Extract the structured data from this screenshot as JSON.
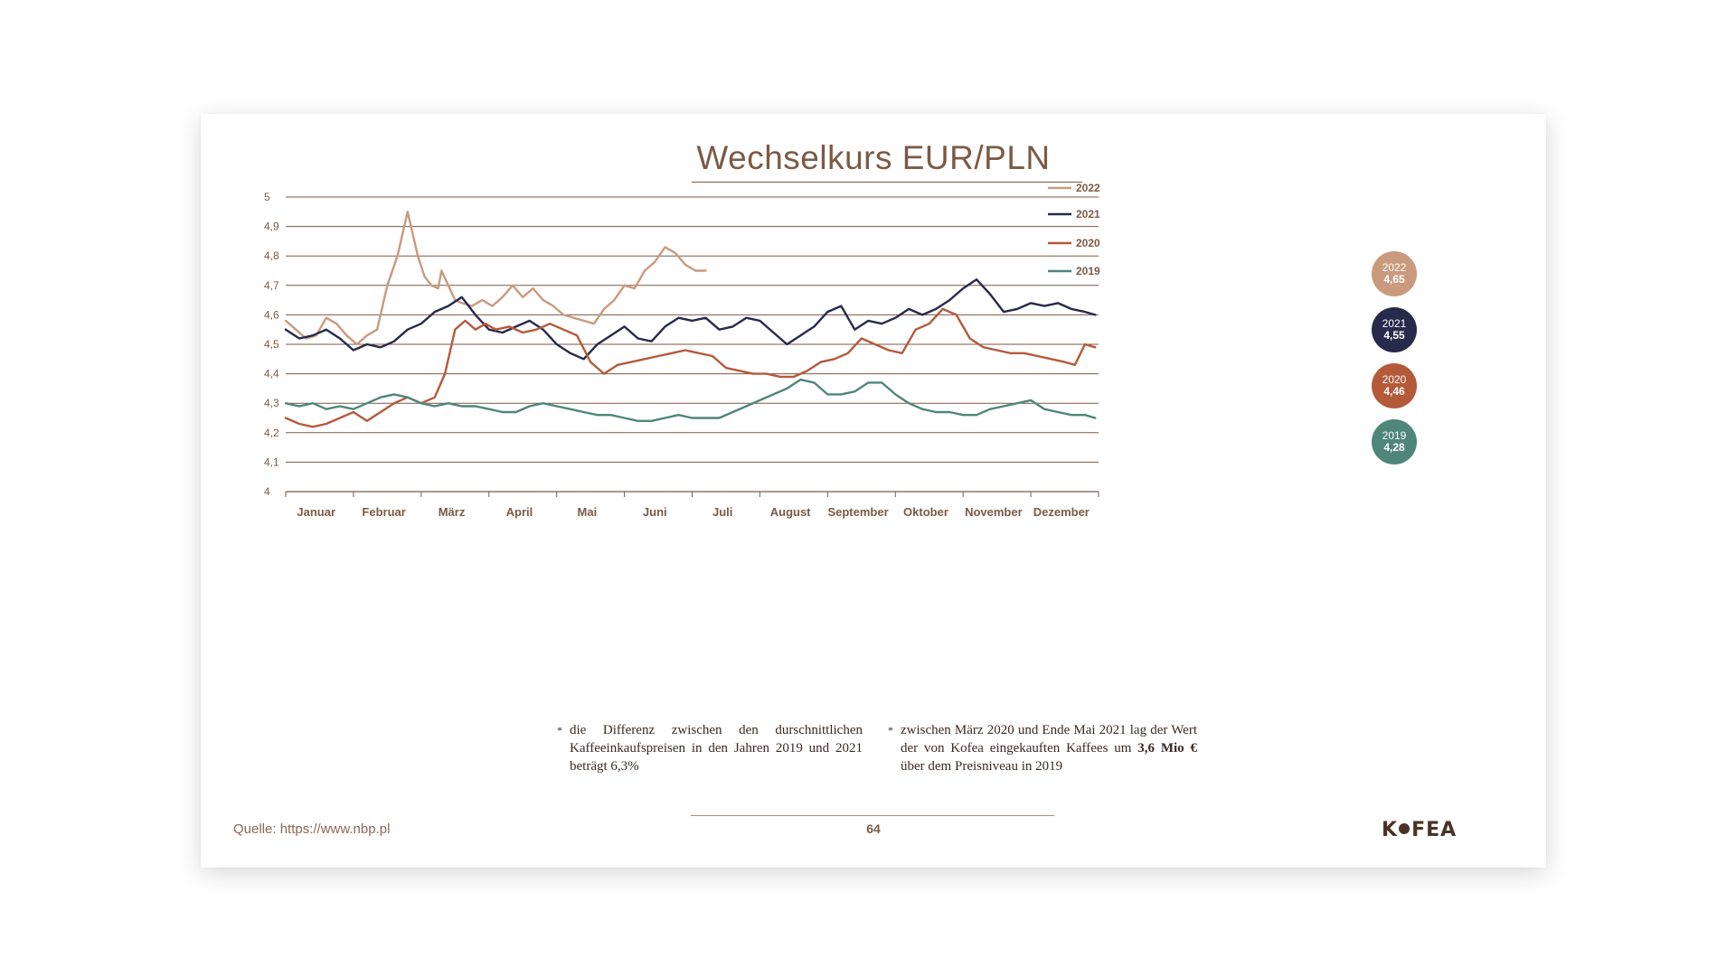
{
  "colors": {
    "c2022": "#c99a7e",
    "c2021": "#272a4b",
    "c2020": "#b5593b",
    "c2019": "#4e867a",
    "axis_text": "#7b5a45",
    "grid": "#7b5a45"
  },
  "title": "Wechselkurs EUR/PLN",
  "chart_data": {
    "type": "line",
    "title": "Wechselkurs EUR/PLN",
    "xlabel": "",
    "ylabel": "",
    "ylim": [
      4,
      5
    ],
    "yticks": [
      "4",
      "4,1",
      "4,2",
      "4,3",
      "4,4",
      "4,5",
      "4,6",
      "4,7",
      "4,8",
      "4,9",
      "5"
    ],
    "categories": [
      "Januar",
      "Februar",
      "März",
      "April",
      "Mai",
      "Juni",
      "Juli",
      "August",
      "September",
      "Oktober",
      "November",
      "Dezember"
    ],
    "x_unit": "month (0-12)",
    "grid": true,
    "legend_position": "top-right",
    "series": [
      {
        "name": "2022",
        "color": "#c99a7e",
        "x": [
          0,
          0.15,
          0.3,
          0.45,
          0.6,
          0.75,
          0.9,
          1.05,
          1.2,
          1.35,
          1.5,
          1.65,
          1.8,
          1.95,
          2.05,
          2.15,
          2.25,
          2.3,
          2.4,
          2.5,
          2.6,
          2.75,
          2.9,
          3.05,
          3.2,
          3.35,
          3.5,
          3.65,
          3.8,
          3.95,
          4.1,
          4.25,
          4.4,
          4.55,
          4.7,
          4.85,
          5.0,
          5.15,
          5.3,
          5.45,
          5.6,
          5.75,
          5.9,
          6.05,
          6.2
        ],
        "y": [
          4.58,
          4.55,
          4.52,
          4.53,
          4.59,
          4.57,
          4.53,
          4.5,
          4.53,
          4.55,
          4.7,
          4.8,
          4.95,
          4.8,
          4.73,
          4.7,
          4.69,
          4.75,
          4.7,
          4.65,
          4.64,
          4.63,
          4.65,
          4.63,
          4.66,
          4.7,
          4.66,
          4.69,
          4.65,
          4.63,
          4.6,
          4.59,
          4.58,
          4.57,
          4.62,
          4.65,
          4.7,
          4.69,
          4.75,
          4.78,
          4.83,
          4.81,
          4.77,
          4.75,
          4.75
        ]
      },
      {
        "name": "2021",
        "color": "#272a4b",
        "x": [
          0,
          0.2,
          0.4,
          0.6,
          0.8,
          1.0,
          1.2,
          1.4,
          1.6,
          1.8,
          2.0,
          2.2,
          2.4,
          2.6,
          2.8,
          3.0,
          3.2,
          3.4,
          3.6,
          3.8,
          4.0,
          4.2,
          4.4,
          4.6,
          4.8,
          5.0,
          5.2,
          5.4,
          5.6,
          5.8,
          6.0,
          6.2,
          6.4,
          6.6,
          6.8,
          7.0,
          7.2,
          7.4,
          7.6,
          7.8,
          8.0,
          8.2,
          8.4,
          8.6,
          8.8,
          9.0,
          9.2,
          9.4,
          9.6,
          9.8,
          10.0,
          10.2,
          10.4,
          10.6,
          10.8,
          11.0,
          11.2,
          11.4,
          11.6,
          11.8,
          11.95
        ],
        "y": [
          4.55,
          4.52,
          4.53,
          4.55,
          4.52,
          4.48,
          4.5,
          4.49,
          4.51,
          4.55,
          4.57,
          4.61,
          4.63,
          4.66,
          4.6,
          4.55,
          4.54,
          4.56,
          4.58,
          4.55,
          4.5,
          4.47,
          4.45,
          4.5,
          4.53,
          4.56,
          4.52,
          4.51,
          4.56,
          4.59,
          4.58,
          4.59,
          4.55,
          4.56,
          4.59,
          4.58,
          4.54,
          4.5,
          4.53,
          4.56,
          4.61,
          4.63,
          4.55,
          4.58,
          4.57,
          4.59,
          4.62,
          4.6,
          4.62,
          4.65,
          4.69,
          4.72,
          4.67,
          4.61,
          4.62,
          4.64,
          4.63,
          4.64,
          4.62,
          4.61,
          4.6
        ]
      },
      {
        "name": "2020",
        "color": "#b5593b",
        "x": [
          0,
          0.2,
          0.4,
          0.6,
          0.8,
          1.0,
          1.2,
          1.4,
          1.6,
          1.8,
          2.0,
          2.2,
          2.35,
          2.5,
          2.65,
          2.8,
          2.95,
          3.1,
          3.3,
          3.5,
          3.7,
          3.9,
          4.1,
          4.3,
          4.5,
          4.7,
          4.9,
          5.1,
          5.3,
          5.5,
          5.7,
          5.9,
          6.1,
          6.3,
          6.5,
          6.7,
          6.9,
          7.1,
          7.3,
          7.5,
          7.7,
          7.9,
          8.1,
          8.3,
          8.5,
          8.7,
          8.9,
          9.1,
          9.3,
          9.5,
          9.7,
          9.9,
          10.1,
          10.3,
          10.5,
          10.7,
          10.9,
          11.1,
          11.3,
          11.5,
          11.65,
          11.8,
          11.95
        ],
        "y": [
          4.25,
          4.23,
          4.22,
          4.23,
          4.25,
          4.27,
          4.24,
          4.27,
          4.3,
          4.32,
          4.3,
          4.32,
          4.4,
          4.55,
          4.58,
          4.55,
          4.57,
          4.55,
          4.56,
          4.54,
          4.55,
          4.57,
          4.55,
          4.53,
          4.44,
          4.4,
          4.43,
          4.44,
          4.45,
          4.46,
          4.47,
          4.48,
          4.47,
          4.46,
          4.42,
          4.41,
          4.4,
          4.4,
          4.39,
          4.39,
          4.41,
          4.44,
          4.45,
          4.47,
          4.52,
          4.5,
          4.48,
          4.47,
          4.55,
          4.57,
          4.62,
          4.6,
          4.52,
          4.49,
          4.48,
          4.47,
          4.47,
          4.46,
          4.45,
          4.44,
          4.43,
          4.5,
          4.49
        ]
      },
      {
        "name": "2019",
        "color": "#4e867a",
        "x": [
          0,
          0.2,
          0.4,
          0.6,
          0.8,
          1.0,
          1.2,
          1.4,
          1.6,
          1.8,
          2.0,
          2.2,
          2.4,
          2.6,
          2.8,
          3.0,
          3.2,
          3.4,
          3.6,
          3.8,
          4.0,
          4.2,
          4.4,
          4.6,
          4.8,
          5.0,
          5.2,
          5.4,
          5.6,
          5.8,
          6.0,
          6.2,
          6.4,
          6.6,
          6.8,
          7.0,
          7.2,
          7.4,
          7.6,
          7.8,
          8.0,
          8.2,
          8.4,
          8.6,
          8.8,
          9.0,
          9.2,
          9.4,
          9.6,
          9.8,
          10.0,
          10.2,
          10.4,
          10.6,
          10.8,
          11.0,
          11.2,
          11.4,
          11.6,
          11.8,
          11.95
        ],
        "y": [
          4.3,
          4.29,
          4.3,
          4.28,
          4.29,
          4.28,
          4.3,
          4.32,
          4.33,
          4.32,
          4.3,
          4.29,
          4.3,
          4.29,
          4.29,
          4.28,
          4.27,
          4.27,
          4.29,
          4.3,
          4.29,
          4.28,
          4.27,
          4.26,
          4.26,
          4.25,
          4.24,
          4.24,
          4.25,
          4.26,
          4.25,
          4.25,
          4.25,
          4.27,
          4.29,
          4.31,
          4.33,
          4.35,
          4.38,
          4.37,
          4.33,
          4.33,
          4.34,
          4.37,
          4.37,
          4.33,
          4.3,
          4.28,
          4.27,
          4.27,
          4.26,
          4.26,
          4.28,
          4.29,
          4.3,
          4.31,
          4.28,
          4.27,
          4.26,
          4.26,
          4.25
        ]
      }
    ]
  },
  "badges": [
    {
      "year": "2022",
      "value": "4,65",
      "color": "#c99a7e"
    },
    {
      "year": "2021",
      "value": "4,55",
      "color": "#272a4b"
    },
    {
      "year": "2020",
      "value": "4,46",
      "color": "#b5593b"
    },
    {
      "year": "2019",
      "value": "4,28",
      "color": "#4e867a"
    }
  ],
  "notes": {
    "left": "die Differenz zwischen den durschnittlichen Kaffeeinkaufspreisen in den Jahren 2019 und 2021 beträgt 6,3%",
    "right_part1": "zwischen März 2020 und Ende Mai 2021 lag der Wert der von Kofea eingekauften Kaffees um ",
    "right_bold": "3,6 Mio €",
    "right_part2": " über dem Preisniveau in 2019",
    "marker": "*"
  },
  "footer": {
    "source": "Quelle: https://www.nbp.pl",
    "page_number": "64",
    "logo_left": "K",
    "logo_right": "FEA"
  }
}
